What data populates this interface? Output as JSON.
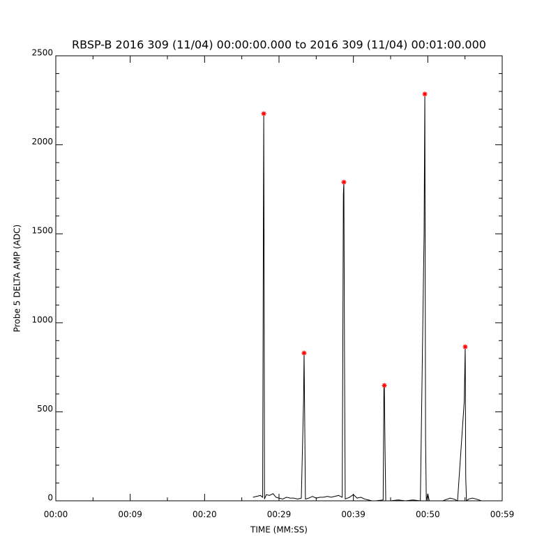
{
  "chart_data": {
    "type": "line",
    "title": "RBSP-B 2016 309 (11/04) 00:00:00.000 to 2016 309 (11/04) 00:01:00.000",
    "x_label": "TIME (MM:SS)",
    "y_label": "Probe 5 DELTA AMP (ADC)",
    "xlim": [
      0,
      60
    ],
    "ylim": [
      0,
      2500
    ],
    "xticks": [
      {
        "value": 0,
        "label": "00:00"
      },
      {
        "value": 10,
        "label": "00:09"
      },
      {
        "value": 20,
        "label": "00:20"
      },
      {
        "value": 30,
        "label": "00:29"
      },
      {
        "value": 40,
        "label": "00:39"
      },
      {
        "value": 50,
        "label": "00:50"
      },
      {
        "value": 60,
        "label": "00:59"
      }
    ],
    "yticks": [
      0,
      500,
      1000,
      1500,
      2000,
      2500
    ],
    "series": [
      {
        "color": "#000000",
        "marker": "line",
        "x": [
          26.5,
          27.0,
          27.5,
          27.8,
          27.9,
          27.95,
          28.0,
          28.05,
          28.3,
          28.7,
          29.2,
          29.6,
          30.0,
          30.5,
          31.0,
          31.5,
          32.0,
          32.5,
          33.0,
          33.3,
          33.37,
          33.45,
          33.55,
          34.0,
          34.5,
          35.0,
          35.5,
          36.0,
          36.5,
          37.0,
          37.5,
          38.0,
          38.5,
          38.65,
          38.72,
          38.8,
          38.9,
          39.5,
          40.0,
          40.5,
          41.0,
          41.5,
          42.0,
          42.5,
          43.0,
          44.0,
          44.1,
          44.16,
          44.25,
          44.35,
          45.0,
          46.0,
          47.0,
          48.0,
          49.0,
          49.5,
          49.6,
          49.7,
          49.8,
          50.0,
          50.2,
          51.0,
          52.0,
          53.0,
          53.5,
          54.0,
          54.9,
          55.03,
          55.1,
          55.2,
          55.5,
          56.0,
          56.5,
          57.2
        ],
        "values": [
          20,
          25,
          30,
          20,
          1510,
          2175,
          1350,
          10,
          35,
          30,
          40,
          20,
          15,
          10,
          20,
          15,
          15,
          10,
          15,
          560,
          830,
          480,
          10,
          15,
          25,
          15,
          20,
          20,
          25,
          20,
          25,
          30,
          20,
          1720,
          1790,
          850,
          10,
          20,
          35,
          15,
          20,
          10,
          5,
          0,
          0,
          5,
          630,
          648,
          300,
          0,
          0,
          5,
          0,
          5,
          0,
          1500,
          2285,
          350,
          0,
          40,
          0,
          0,
          0,
          15,
          10,
          0,
          560,
          865,
          130,
          0,
          10,
          15,
          10,
          0
        ]
      },
      {
        "color": "#ff0000",
        "marker": "asterisk",
        "x": [
          27.95,
          33.37,
          38.72,
          44.16,
          49.6,
          55.03
        ],
        "values": [
          2175,
          830,
          1790,
          648,
          2285,
          865
        ]
      }
    ]
  }
}
